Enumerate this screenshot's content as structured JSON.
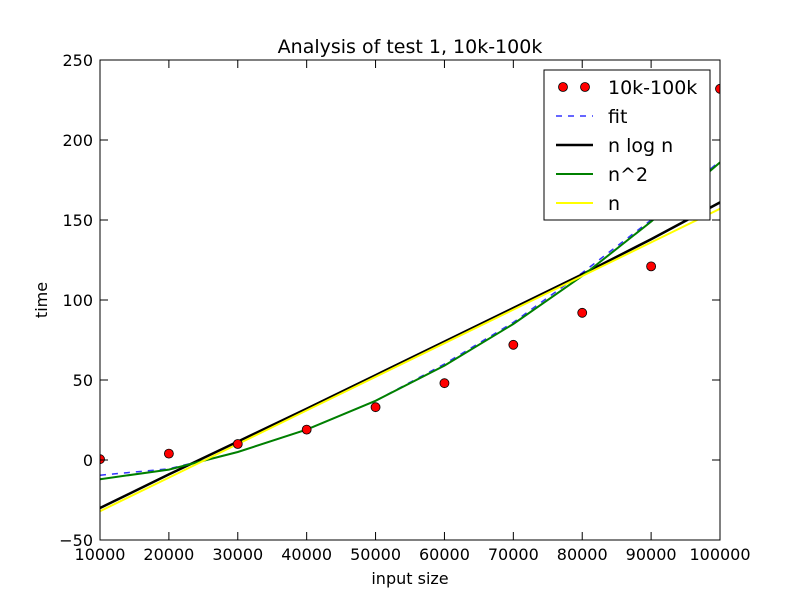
{
  "chart_data": {
    "type": "line",
    "title": "Analysis of test 1, 10k-100k",
    "xlabel": "input size",
    "ylabel": "time",
    "xlim": [
      10000,
      100000
    ],
    "ylim": [
      -50,
      250
    ],
    "xticks": [
      10000,
      20000,
      30000,
      40000,
      50000,
      60000,
      70000,
      80000,
      90000,
      100000
    ],
    "yticks": [
      -50,
      0,
      50,
      100,
      150,
      200,
      250
    ],
    "grid": false,
    "legend_position": "top-right",
    "x": [
      10000,
      20000,
      30000,
      40000,
      50000,
      60000,
      70000,
      80000,
      90000,
      100000
    ],
    "series": [
      {
        "name": "10k-100k",
        "style": "markers",
        "color": "#ff0000",
        "values": [
          0.5,
          4,
          10,
          19,
          33,
          48,
          72,
          92,
          121,
          232
        ]
      },
      {
        "name": "fit",
        "style": "dashed",
        "color": "#3333ff",
        "values": [
          -9.5,
          -5.5,
          5,
          19,
          37,
          60,
          86,
          117,
          150,
          187
        ]
      },
      {
        "name": "n log n",
        "style": "solid-thick",
        "color": "#000000",
        "values": [
          -30,
          -9,
          11.5,
          32,
          53,
          74,
          95,
          116,
          138,
          161
        ]
      },
      {
        "name": "n^2",
        "style": "solid",
        "color": "#008000",
        "values": [
          -12,
          -6,
          5,
          19,
          37,
          59,
          85,
          115,
          149,
          186
        ]
      },
      {
        "name": "n",
        "style": "solid",
        "color": "#ffff00",
        "values": [
          -32,
          -11,
          10,
          31,
          52,
          73,
          94,
          115,
          136,
          157
        ]
      }
    ]
  }
}
